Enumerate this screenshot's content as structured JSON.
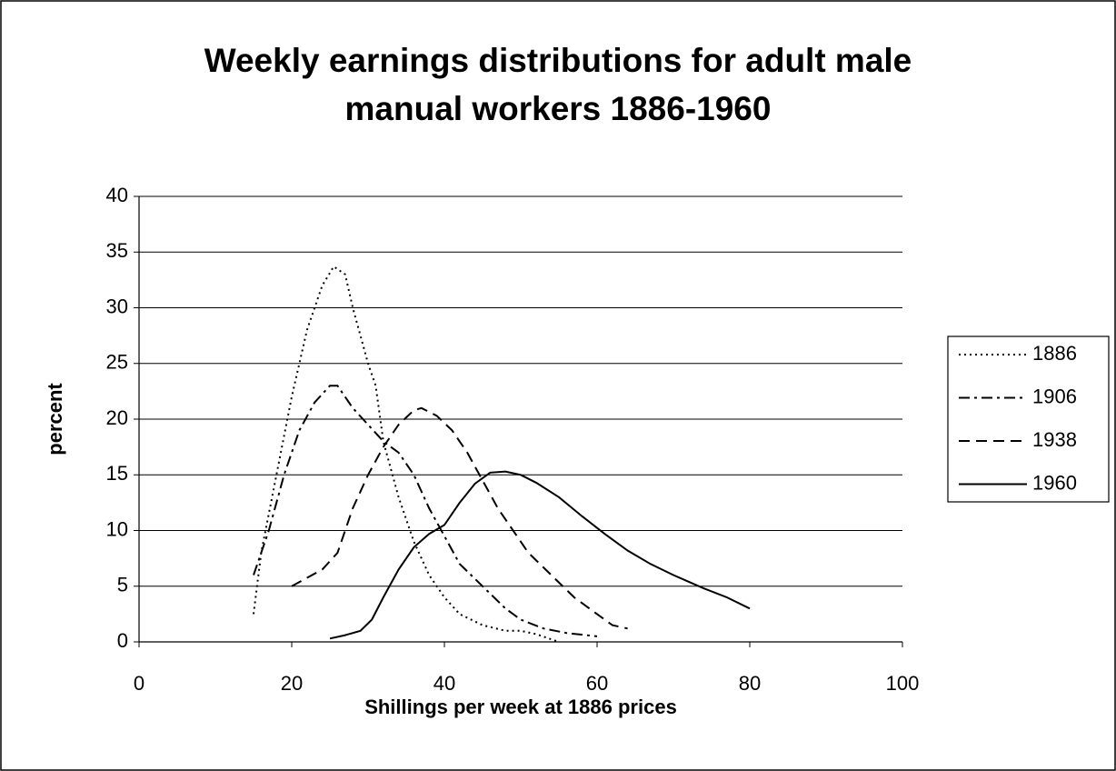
{
  "chart_data": {
    "type": "line",
    "title": "Weekly earnings distributions for adult male manual workers 1886-1960",
    "xlabel": "Shillings per week at 1886 prices",
    "ylabel": "percent",
    "xlim": [
      0,
      100
    ],
    "xticks": [
      0,
      20,
      40,
      60,
      80,
      100
    ],
    "ylim": [
      0,
      40
    ],
    "yticks": [
      0,
      5,
      10,
      15,
      20,
      25,
      30,
      35,
      40
    ],
    "grid": true,
    "legend": "right",
    "series": [
      {
        "name": "1886",
        "color": "#000000",
        "line_style": "dotted",
        "x": [
          15,
          16,
          18,
          20,
          22,
          24,
          25.5,
          27,
          28,
          30,
          31,
          32,
          34,
          36,
          38,
          40,
          42,
          45,
          48,
          50,
          52,
          55
        ],
        "values": [
          2.5,
          8,
          15,
          22,
          28,
          32,
          33.7,
          33,
          30,
          25,
          23,
          18,
          13,
          9,
          6,
          4,
          2.5,
          1.5,
          1,
          1,
          0.7,
          0
        ]
      },
      {
        "name": "1906",
        "color": "#000000",
        "line_style": "dashdot",
        "x": [
          15,
          17,
          19,
          21,
          23,
          25,
          26,
          28,
          30,
          32,
          34,
          36,
          38,
          40,
          42,
          45,
          48,
          50,
          53,
          56,
          60
        ],
        "values": [
          6,
          10,
          15,
          19,
          21.5,
          23,
          23,
          21,
          19.5,
          18,
          17,
          15,
          12,
          9.5,
          7,
          5,
          3,
          2,
          1.2,
          0.8,
          0.5
        ]
      },
      {
        "name": "1938",
        "color": "#000000",
        "line_style": "dashed",
        "x": [
          20,
          24,
          26,
          28,
          30,
          32,
          34,
          36,
          37,
          39,
          41,
          43,
          45,
          47,
          49,
          51,
          54,
          57,
          60,
          62,
          64
        ],
        "values": [
          5,
          6.5,
          8,
          12,
          15,
          17.5,
          19.5,
          20.8,
          21,
          20.3,
          19,
          17,
          14.5,
          12,
          10,
          8,
          6,
          4,
          2.5,
          1.5,
          1.2
        ]
      },
      {
        "name": "1960",
        "color": "#000000",
        "line_style": "solid",
        "x": [
          25,
          27,
          29,
          30.5,
          32,
          34,
          36,
          38,
          40,
          42,
          44,
          46,
          48,
          50,
          52,
          55,
          58,
          61,
          64,
          67,
          70,
          74,
          77,
          80
        ],
        "values": [
          0.3,
          0.6,
          1,
          2,
          4,
          6.5,
          8.5,
          9.7,
          10.5,
          12.5,
          14.2,
          15.2,
          15.3,
          15,
          14.3,
          13,
          11.3,
          9.7,
          8.2,
          7,
          6,
          4.8,
          4,
          3
        ]
      }
    ]
  }
}
